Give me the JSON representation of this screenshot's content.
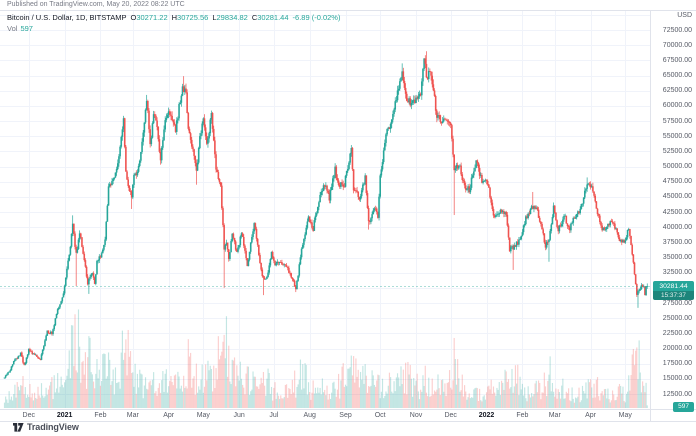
{
  "header": {
    "published_line": "Published on TradingView.com, May 20, 2022 08:22 UTC"
  },
  "legend": {
    "symbol_title": "Bitcoin / U.S. Dollar, 1D, BITSTAMP",
    "o_label": "O",
    "o_value": "30271.22",
    "h_label": "H",
    "h_value": "30725.56",
    "l_label": "L",
    "l_value": "29834.82",
    "c_label": "C",
    "c_value": "30281.44",
    "change": "-6.89 (-0.02%)",
    "vol_label": "Vol",
    "vol_value": "597"
  },
  "price_axis": {
    "unit": "USD",
    "ticks": [
      "72500.00",
      "70000.00",
      "67500.00",
      "65000.00",
      "62500.00",
      "60000.00",
      "57500.00",
      "55000.00",
      "52500.00",
      "50000.00",
      "47500.00",
      "45000.00",
      "42500.00",
      "40000.00",
      "37500.00",
      "35000.00",
      "32500.00",
      "27500.00",
      "25000.00",
      "22500.00",
      "20000.00",
      "17500.00",
      "15000.00",
      "12500.00"
    ],
    "last_price": "30281.44",
    "countdown": "15:37:37",
    "volume_badge": "597"
  },
  "time_axis": {
    "labels": [
      {
        "text": "Dec",
        "date": "2020-12-01",
        "bold": false
      },
      {
        "text": "2021",
        "date": "2021-01-01",
        "bold": true
      },
      {
        "text": "Feb",
        "date": "2021-02-01",
        "bold": false
      },
      {
        "text": "Mar",
        "date": "2021-03-01",
        "bold": false
      },
      {
        "text": "Apr",
        "date": "2021-04-01",
        "bold": false
      },
      {
        "text": "May",
        "date": "2021-05-01",
        "bold": false
      },
      {
        "text": "Jun",
        "date": "2021-06-01",
        "bold": false
      },
      {
        "text": "Jul",
        "date": "2021-07-01",
        "bold": false
      },
      {
        "text": "Aug",
        "date": "2021-08-01",
        "bold": false
      },
      {
        "text": "Sep",
        "date": "2021-09-01",
        "bold": false
      },
      {
        "text": "Oct",
        "date": "2021-10-01",
        "bold": false
      },
      {
        "text": "Nov",
        "date": "2021-11-01",
        "bold": false
      },
      {
        "text": "Dec",
        "date": "2021-12-01",
        "bold": false
      },
      {
        "text": "2022",
        "date": "2022-01-01",
        "bold": true
      },
      {
        "text": "Feb",
        "date": "2022-02-01",
        "bold": false
      },
      {
        "text": "Mar",
        "date": "2022-03-01",
        "bold": false
      },
      {
        "text": "Apr",
        "date": "2022-04-01",
        "bold": false
      },
      {
        "text": "May",
        "date": "2022-05-01",
        "bold": false
      }
    ]
  },
  "footer": {
    "logo_text": "TradingView"
  },
  "colors": {
    "up": "#26a69a",
    "down": "#ef5350",
    "volume_up": "rgba(38,166,154,0.28)",
    "volume_down": "rgba(239,83,80,0.28)",
    "grid": "#f0f3fa",
    "axis_text": "#565a65",
    "border": "#e0e3eb",
    "badge_bg": "#26a69a",
    "countdown_bg": "#1d857b"
  },
  "chart_data": {
    "type": "candlestick+volume",
    "title": "Bitcoin / U.S. Dollar",
    "symbol": "BTCUSD",
    "exchange": "BITSTAMP",
    "interval": "1D",
    "x_range": [
      "2020-11-10",
      "2022-05-20"
    ],
    "price_axis_visible_range": [
      10500,
      75700
    ],
    "price_grid_step": 2500,
    "legend_position": "top-left",
    "grid": true,
    "last_candle": {
      "open": 30271.22,
      "high": 30725.56,
      "low": 29834.82,
      "close": 30281.44,
      "change": -6.89,
      "change_pct": -0.02,
      "volume": 597,
      "prev_close": 30288.33
    },
    "close_keypoints": [
      [
        "2020-11-10",
        15300
      ],
      [
        "2020-11-14",
        16100
      ],
      [
        "2020-11-18",
        17800
      ],
      [
        "2020-11-24",
        19150
      ],
      [
        "2020-11-27",
        17150
      ],
      [
        "2020-12-01",
        19700
      ],
      [
        "2020-12-05",
        19150
      ],
      [
        "2020-12-11",
        18050
      ],
      [
        "2020-12-17",
        22800
      ],
      [
        "2020-12-21",
        22450
      ],
      [
        "2020-12-26",
        26450
      ],
      [
        "2020-12-31",
        29000
      ],
      [
        "2021-01-03",
        33000
      ],
      [
        "2021-01-06",
        36800
      ],
      [
        "2021-01-08",
        40600
      ],
      [
        "2021-01-11",
        35400
      ],
      [
        "2021-01-14",
        39400
      ],
      [
        "2021-01-17",
        35800
      ],
      [
        "2021-01-21",
        30800
      ],
      [
        "2021-01-25",
        32300
      ],
      [
        "2021-01-27",
        30400
      ],
      [
        "2021-01-29",
        34300
      ],
      [
        "2021-02-02",
        35500
      ],
      [
        "2021-02-05",
        38100
      ],
      [
        "2021-02-08",
        46400
      ],
      [
        "2021-02-11",
        47900
      ],
      [
        "2021-02-14",
        48600
      ],
      [
        "2021-02-17",
        52200
      ],
      [
        "2021-02-21",
        57500
      ],
      [
        "2021-02-23",
        48800
      ],
      [
        "2021-02-26",
        46300
      ],
      [
        "2021-02-28",
        45100
      ],
      [
        "2021-03-02",
        48400
      ],
      [
        "2021-03-05",
        48900
      ],
      [
        "2021-03-08",
        52400
      ],
      [
        "2021-03-11",
        57800
      ],
      [
        "2021-03-13",
        61200
      ],
      [
        "2021-03-16",
        53900
      ],
      [
        "2021-03-19",
        58100
      ],
      [
        "2021-03-21",
        57500
      ],
      [
        "2021-03-25",
        51300
      ],
      [
        "2021-03-29",
        57600
      ],
      [
        "2021-04-02",
        59000
      ],
      [
        "2021-04-07",
        56000
      ],
      [
        "2021-04-10",
        59800
      ],
      [
        "2021-04-13",
        63500
      ],
      [
        "2021-04-16",
        61600
      ],
      [
        "2021-04-18",
        56200
      ],
      [
        "2021-04-21",
        53800
      ],
      [
        "2021-04-25",
        49000
      ],
      [
        "2021-04-28",
        54800
      ],
      [
        "2021-05-01",
        57800
      ],
      [
        "2021-05-04",
        53200
      ],
      [
        "2021-05-08",
        58900
      ],
      [
        "2021-05-12",
        49500
      ],
      [
        "2021-05-16",
        46700
      ],
      [
        "2021-05-19",
        36700
      ],
      [
        "2021-05-21",
        37300
      ],
      [
        "2021-05-23",
        34700
      ],
      [
        "2021-05-26",
        39300
      ],
      [
        "2021-05-30",
        35700
      ],
      [
        "2021-06-03",
        39200
      ],
      [
        "2021-06-08",
        33400
      ],
      [
        "2021-06-11",
        37300
      ],
      [
        "2021-06-14",
        40500
      ],
      [
        "2021-06-18",
        35800
      ],
      [
        "2021-06-21",
        31600
      ],
      [
        "2021-06-25",
        31600
      ],
      [
        "2021-06-29",
        35900
      ],
      [
        "2021-07-02",
        33800
      ],
      [
        "2021-07-06",
        34200
      ],
      [
        "2021-07-09",
        33800
      ],
      [
        "2021-07-14",
        32800
      ],
      [
        "2021-07-17",
        31500
      ],
      [
        "2021-07-20",
        29800
      ],
      [
        "2021-07-23",
        33600
      ],
      [
        "2021-07-26",
        37300
      ],
      [
        "2021-07-31",
        41600
      ],
      [
        "2021-08-04",
        39700
      ],
      [
        "2021-08-08",
        43800
      ],
      [
        "2021-08-11",
        45600
      ],
      [
        "2021-08-14",
        47100
      ],
      [
        "2021-08-18",
        44700
      ],
      [
        "2021-08-23",
        49500
      ],
      [
        "2021-08-26",
        46900
      ],
      [
        "2021-08-31",
        47100
      ],
      [
        "2021-09-03",
        50000
      ],
      [
        "2021-09-06",
        52700
      ],
      [
        "2021-09-08",
        46100
      ],
      [
        "2021-09-13",
        44900
      ],
      [
        "2021-09-18",
        48300
      ],
      [
        "2021-09-21",
        40700
      ],
      [
        "2021-09-26",
        43200
      ],
      [
        "2021-09-29",
        41500
      ],
      [
        "2021-10-01",
        48200
      ],
      [
        "2021-10-06",
        55300
      ],
      [
        "2021-10-11",
        57500
      ],
      [
        "2021-10-15",
        61600
      ],
      [
        "2021-10-20",
        66000
      ],
      [
        "2021-10-24",
        60900
      ],
      [
        "2021-10-28",
        60600
      ],
      [
        "2021-11-01",
        61000
      ],
      [
        "2021-11-05",
        61500
      ],
      [
        "2021-11-08",
        67500
      ],
      [
        "2021-11-10",
        64900
      ],
      [
        "2021-11-14",
        65500
      ],
      [
        "2021-11-19",
        58100
      ],
      [
        "2021-11-23",
        57600
      ],
      [
        "2021-11-28",
        57300
      ],
      [
        "2021-12-01",
        57200
      ],
      [
        "2021-12-04",
        49200
      ],
      [
        "2021-12-08",
        50500
      ],
      [
        "2021-12-13",
        46700
      ],
      [
        "2021-12-17",
        46200
      ],
      [
        "2021-12-23",
        50800
      ],
      [
        "2021-12-28",
        47500
      ],
      [
        "2022-01-02",
        47300
      ],
      [
        "2022-01-07",
        41600
      ],
      [
        "2022-01-13",
        42600
      ],
      [
        "2022-01-18",
        42200
      ],
      [
        "2022-01-21",
        36400
      ],
      [
        "2022-01-24",
        36700
      ],
      [
        "2022-01-27",
        37200
      ],
      [
        "2022-01-30",
        37900
      ],
      [
        "2022-02-04",
        41500
      ],
      [
        "2022-02-10",
        43500
      ],
      [
        "2022-02-14",
        42600
      ],
      [
        "2022-02-17",
        40500
      ],
      [
        "2022-02-21",
        37000
      ],
      [
        "2022-02-24",
        38300
      ],
      [
        "2022-02-28",
        43200
      ],
      [
        "2022-03-04",
        39400
      ],
      [
        "2022-03-09",
        41900
      ],
      [
        "2022-03-14",
        39700
      ],
      [
        "2022-03-18",
        41800
      ],
      [
        "2022-03-22",
        42400
      ],
      [
        "2022-03-25",
        44300
      ],
      [
        "2022-03-29",
        47400
      ],
      [
        "2022-04-02",
        46300
      ],
      [
        "2022-04-06",
        43200
      ],
      [
        "2022-04-11",
        39500
      ],
      [
        "2022-04-14",
        39900
      ],
      [
        "2022-04-18",
        40800
      ],
      [
        "2022-04-21",
        40500
      ],
      [
        "2022-04-26",
        38100
      ],
      [
        "2022-04-30",
        37700
      ],
      [
        "2022-05-04",
        39700
      ],
      [
        "2022-05-08",
        34000
      ],
      [
        "2022-05-11",
        29000
      ],
      [
        "2022-05-14",
        30100
      ],
      [
        "2022-05-17",
        30400
      ],
      [
        "2022-05-18",
        28700
      ],
      [
        "2022-05-20",
        30281.44
      ]
    ],
    "wick_events": [
      [
        "2020-11-25",
        19500,
        "h"
      ],
      [
        "2021-01-08",
        41950,
        "h"
      ],
      [
        "2021-01-11",
        30300,
        "l"
      ],
      [
        "2021-01-22",
        29000,
        "l"
      ],
      [
        "2021-02-21",
        58350,
        "h"
      ],
      [
        "2021-02-28",
        43000,
        "l"
      ],
      [
        "2021-03-13",
        61800,
        "h"
      ],
      [
        "2021-03-25",
        50300,
        "l"
      ],
      [
        "2021-04-14",
        64895,
        "h"
      ],
      [
        "2021-04-25",
        47000,
        "l"
      ],
      [
        "2021-05-19",
        30000,
        "l"
      ],
      [
        "2021-06-22",
        28800,
        "l"
      ],
      [
        "2021-07-20",
        29300,
        "l"
      ],
      [
        "2021-09-06",
        52900,
        "h"
      ],
      [
        "2021-09-21",
        39600,
        "l"
      ],
      [
        "2021-10-20",
        67000,
        "h"
      ],
      [
        "2021-11-10",
        69000,
        "h"
      ],
      [
        "2021-12-04",
        42000,
        "l"
      ],
      [
        "2022-01-24",
        32950,
        "l"
      ],
      [
        "2022-02-10",
        45800,
        "h"
      ],
      [
        "2022-02-24",
        34300,
        "l"
      ],
      [
        "2022-03-29",
        48200,
        "h"
      ],
      [
        "2022-05-12",
        26700,
        "l"
      ]
    ],
    "volume_keypoints_rel": [
      [
        "2020-11-10",
        0.12
      ],
      [
        "2020-11-26",
        0.22
      ],
      [
        "2020-12-08",
        0.14
      ],
      [
        "2020-12-17",
        0.22
      ],
      [
        "2020-12-27",
        0.25
      ],
      [
        "2021-01-04",
        0.55
      ],
      [
        "2021-01-11",
        1.0
      ],
      [
        "2021-01-16",
        0.45
      ],
      [
        "2021-01-21",
        0.5
      ],
      [
        "2021-01-29",
        0.5
      ],
      [
        "2021-02-08",
        0.45
      ],
      [
        "2021-02-15",
        0.3
      ],
      [
        "2021-02-23",
        0.9
      ],
      [
        "2021-03-01",
        0.32
      ],
      [
        "2021-03-13",
        0.26
      ],
      [
        "2021-03-25",
        0.3
      ],
      [
        "2021-04-07",
        0.25
      ],
      [
        "2021-04-14",
        0.3
      ],
      [
        "2021-04-18",
        0.48
      ],
      [
        "2021-04-26",
        0.3
      ],
      [
        "2021-05-04",
        0.3
      ],
      [
        "2021-05-13",
        0.5
      ],
      [
        "2021-05-19",
        0.78
      ],
      [
        "2021-05-24",
        0.42
      ],
      [
        "2021-06-04",
        0.3
      ],
      [
        "2021-06-09",
        0.32
      ],
      [
        "2021-06-15",
        0.25
      ],
      [
        "2021-06-22",
        0.38
      ],
      [
        "2021-07-01",
        0.18
      ],
      [
        "2021-07-09",
        0.15
      ],
      [
        "2021-07-21",
        0.3
      ],
      [
        "2021-07-26",
        0.38
      ],
      [
        "2021-08-03",
        0.2
      ],
      [
        "2021-08-10",
        0.2
      ],
      [
        "2021-08-18",
        0.22
      ],
      [
        "2021-08-24",
        0.22
      ],
      [
        "2021-09-07",
        0.42
      ],
      [
        "2021-09-13",
        0.28
      ],
      [
        "2021-09-21",
        0.32
      ],
      [
        "2021-09-28",
        0.22
      ],
      [
        "2021-10-06",
        0.28
      ],
      [
        "2021-10-13",
        0.22
      ],
      [
        "2021-10-20",
        0.3
      ],
      [
        "2021-10-27",
        0.32
      ],
      [
        "2021-11-03",
        0.22
      ],
      [
        "2021-11-10",
        0.3
      ],
      [
        "2021-11-16",
        0.3
      ],
      [
        "2021-11-26",
        0.3
      ],
      [
        "2021-12-04",
        0.55
      ],
      [
        "2021-12-09",
        0.3
      ],
      [
        "2021-12-14",
        0.22
      ],
      [
        "2021-12-24",
        0.15
      ],
      [
        "2022-01-01",
        0.12
      ],
      [
        "2022-01-07",
        0.28
      ],
      [
        "2022-01-13",
        0.18
      ],
      [
        "2022-01-21",
        0.38
      ],
      [
        "2022-01-24",
        0.42
      ],
      [
        "2022-01-31",
        0.2
      ],
      [
        "2022-02-05",
        0.15
      ],
      [
        "2022-02-10",
        0.25
      ],
      [
        "2022-02-17",
        0.18
      ],
      [
        "2022-02-24",
        0.38
      ],
      [
        "2022-03-02",
        0.22
      ],
      [
        "2022-03-09",
        0.2
      ],
      [
        "2022-03-16",
        0.15
      ],
      [
        "2022-03-23",
        0.15
      ],
      [
        "2022-03-29",
        0.2
      ],
      [
        "2022-04-06",
        0.22
      ],
      [
        "2022-04-12",
        0.2
      ],
      [
        "2022-04-20",
        0.14
      ],
      [
        "2022-04-26",
        0.18
      ],
      [
        "2022-05-01",
        0.15
      ],
      [
        "2022-05-05",
        0.28
      ],
      [
        "2022-05-09",
        0.5
      ],
      [
        "2022-05-12",
        0.62
      ],
      [
        "2022-05-15",
        0.22
      ],
      [
        "2022-05-19",
        0.18
      ],
      [
        "2022-05-20",
        0.02
      ]
    ]
  }
}
